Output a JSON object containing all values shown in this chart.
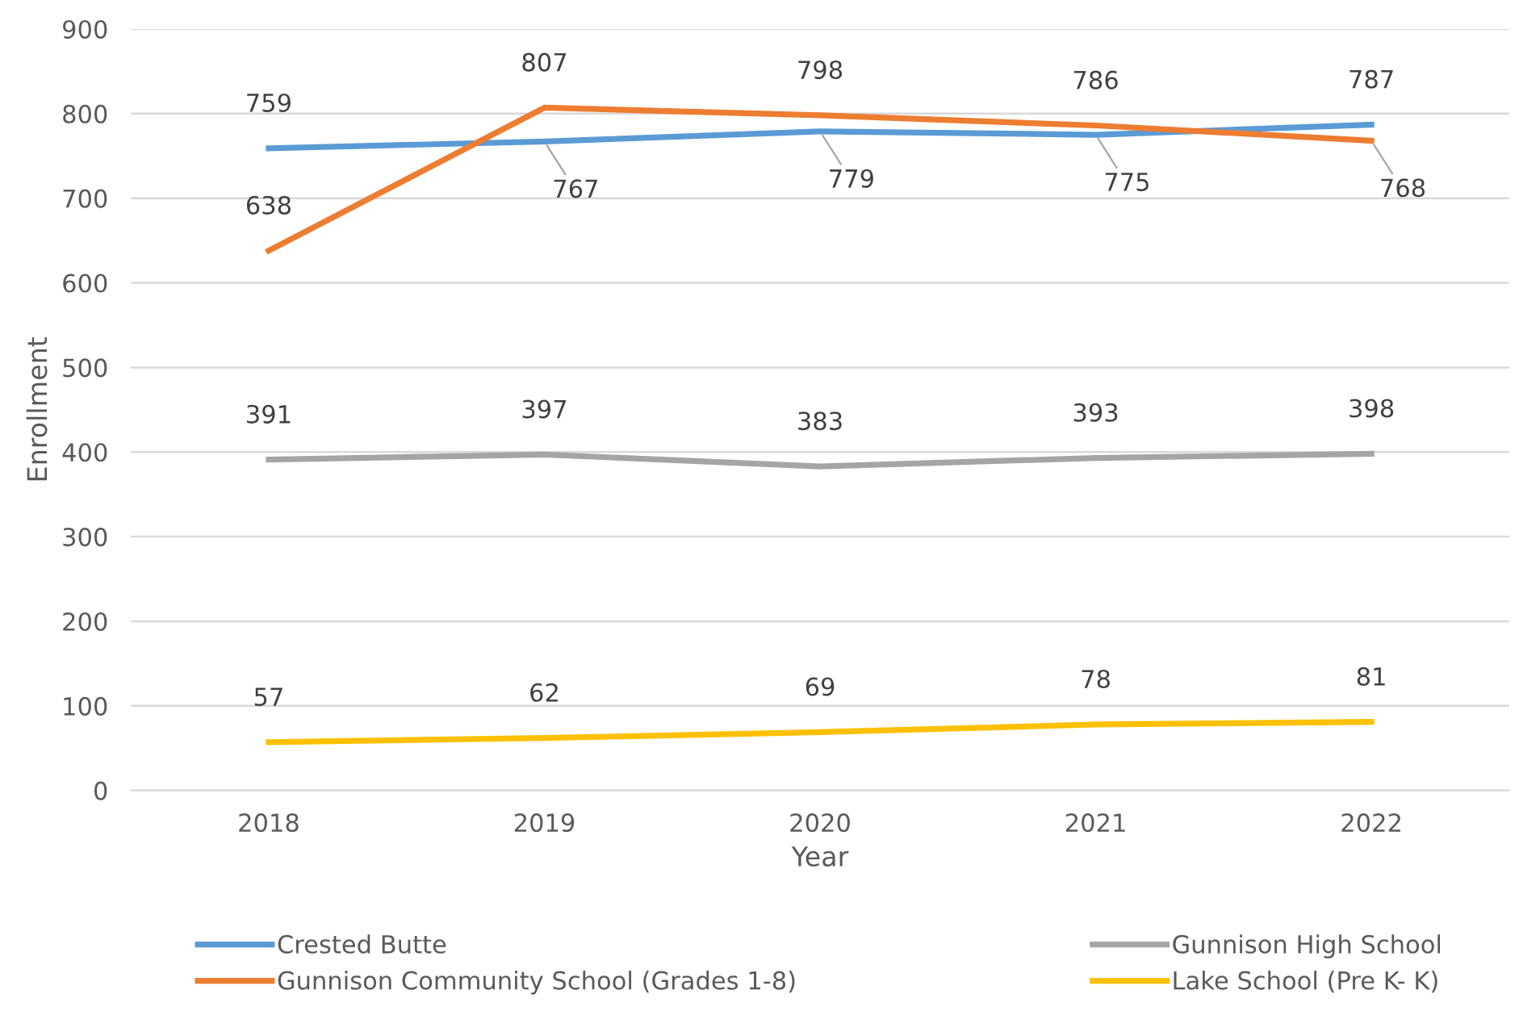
{
  "chart_data": {
    "type": "line",
    "xlabel": "Year",
    "ylabel": "Enrollment",
    "categories": [
      "2018",
      "2019",
      "2020",
      "2021",
      "2022"
    ],
    "series": [
      {
        "name": "Crested Butte",
        "color": "#5b9bd5",
        "values": [
          759,
          767,
          779,
          775,
          787
        ]
      },
      {
        "name": "Gunnison Community School (Grades 1-8)",
        "color": "#ed7d31",
        "values": [
          638,
          807,
          798,
          786,
          768
        ]
      },
      {
        "name": "Gunnison High School",
        "color": "#a5a5a5",
        "values": [
          391,
          397,
          383,
          393,
          398
        ]
      },
      {
        "name": "Lake School (Pre K- K)",
        "color": "#ffc000",
        "values": [
          57,
          62,
          69,
          78,
          81
        ]
      }
    ],
    "ylim": [
      0,
      900
    ],
    "yticks": [
      0,
      100,
      200,
      300,
      400,
      500,
      600,
      700,
      800,
      900
    ],
    "grid": "y",
    "legend": "bottom",
    "data_labels": true,
    "marker": "none",
    "line_style": "solid"
  }
}
